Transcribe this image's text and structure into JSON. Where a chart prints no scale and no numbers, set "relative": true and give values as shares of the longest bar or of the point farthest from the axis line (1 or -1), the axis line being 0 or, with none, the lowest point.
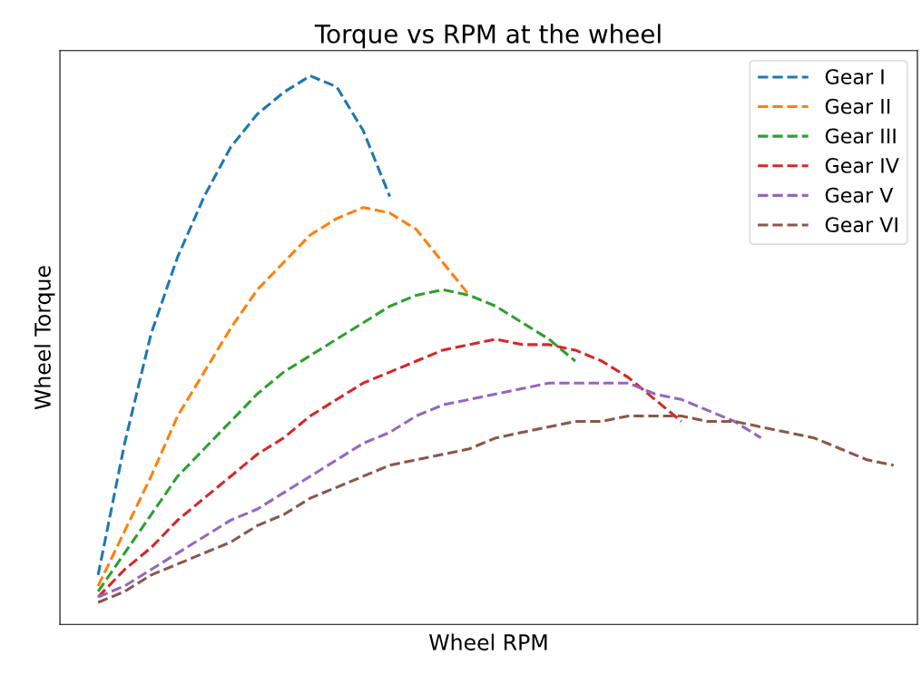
{
  "chart_data": {
    "type": "line",
    "title": "Torque vs RPM at the wheel",
    "xlabel": "Wheel RPM",
    "ylabel": "Wheel Torque",
    "relative": true,
    "categories": [
      null,
      null,
      null,
      null,
      null,
      null,
      null,
      null,
      null,
      null,
      null,
      null,
      null,
      null,
      null,
      null,
      null,
      null,
      null,
      null,
      null,
      null,
      null,
      null,
      null,
      null,
      null,
      null,
      null,
      null,
      null
    ],
    "line_style": "dashed",
    "marker": "none",
    "grid": false,
    "legend": "top right",
    "series": [
      {
        "name": "Gear I",
        "color": "#1f77b4",
        "values": [
          0.09,
          0.33,
          0.53,
          0.67,
          0.78,
          0.87,
          0.93,
          0.97,
          1.0,
          0.98,
          0.9,
          0.78,
          null,
          null,
          null,
          null,
          null,
          null,
          null,
          null,
          null,
          null,
          null,
          null,
          null,
          null,
          null,
          null,
          null,
          null,
          null
        ]
      },
      {
        "name": "Gear II",
        "color": "#ff7f0e",
        "values": [
          0.07,
          0.17,
          0.27,
          0.38,
          0.46,
          0.54,
          0.61,
          0.66,
          0.71,
          0.74,
          0.76,
          0.75,
          0.72,
          0.66,
          0.6,
          null,
          null,
          null,
          null,
          null,
          null,
          null,
          null,
          null,
          null,
          null,
          null,
          null,
          null,
          null,
          null
        ]
      },
      {
        "name": "Gear III",
        "color": "#2ca02c",
        "values": [
          0.06,
          0.13,
          0.2,
          0.27,
          0.32,
          0.37,
          0.42,
          0.46,
          0.49,
          0.52,
          0.55,
          0.58,
          0.6,
          0.61,
          0.6,
          0.58,
          0.55,
          0.52,
          0.48,
          null,
          null,
          null,
          null,
          null,
          null,
          null,
          null,
          null,
          null,
          null,
          null
        ]
      },
      {
        "name": "Gear IV",
        "color": "#d62728",
        "values": [
          0.05,
          0.1,
          0.14,
          0.19,
          0.23,
          0.27,
          0.31,
          0.34,
          0.38,
          0.41,
          0.44,
          0.46,
          0.48,
          0.5,
          0.51,
          0.52,
          0.51,
          0.51,
          0.5,
          0.48,
          0.45,
          0.41,
          0.37,
          null,
          null,
          null,
          null,
          null,
          null,
          null,
          null
        ]
      },
      {
        "name": "Gear V",
        "color": "#9467bd",
        "values": [
          0.05,
          0.07,
          0.1,
          0.13,
          0.16,
          0.19,
          0.21,
          0.24,
          0.27,
          0.3,
          0.33,
          0.35,
          0.38,
          0.4,
          0.41,
          0.42,
          0.43,
          0.44,
          0.44,
          0.44,
          0.44,
          0.42,
          0.41,
          0.39,
          0.37,
          0.34,
          null,
          null,
          null,
          null,
          null
        ]
      },
      {
        "name": "Gear VI",
        "color": "#8c564b",
        "values": [
          0.04,
          0.06,
          0.09,
          0.11,
          0.13,
          0.15,
          0.18,
          0.2,
          0.23,
          0.25,
          0.27,
          0.29,
          0.3,
          0.31,
          0.32,
          0.34,
          0.35,
          0.36,
          0.37,
          0.37,
          0.38,
          0.38,
          0.38,
          0.37,
          0.37,
          0.36,
          0.35,
          0.34,
          0.32,
          0.3,
          0.29
        ]
      }
    ]
  }
}
